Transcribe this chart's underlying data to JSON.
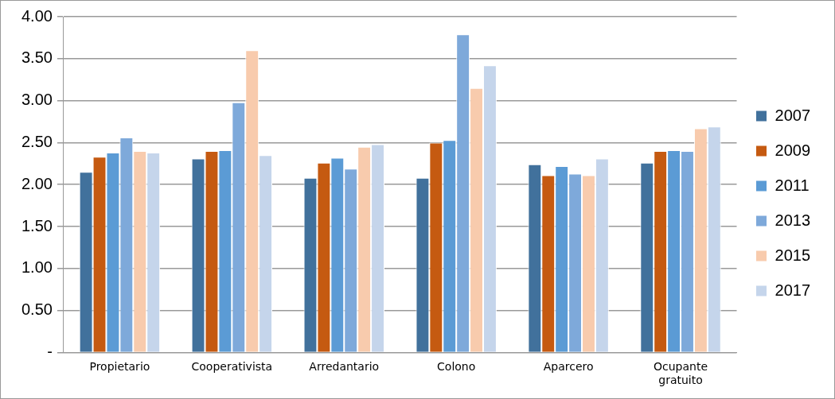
{
  "chart_data": {
    "type": "bar",
    "categories": [
      "Propietario",
      "Cooperativista",
      "Arredantario",
      "Colono",
      "Aparcero",
      "Ocupante gratuito"
    ],
    "series": [
      {
        "name": "2007",
        "color": "#41719c",
        "values": [
          2.15,
          2.31,
          2.08,
          2.08,
          2.24,
          2.26
        ]
      },
      {
        "name": "2009",
        "color": "#c55a11",
        "values": [
          2.33,
          2.4,
          2.26,
          2.5,
          2.11,
          2.4
        ]
      },
      {
        "name": "2011",
        "color": "#5b9bd5",
        "values": [
          2.38,
          2.41,
          2.32,
          2.53,
          2.22,
          2.41
        ]
      },
      {
        "name": "2013",
        "color": "#7ea9da",
        "values": [
          2.56,
          2.98,
          2.19,
          3.79,
          2.13,
          2.4
        ]
      },
      {
        "name": "2015",
        "color": "#f8cbad",
        "values": [
          2.4,
          3.6,
          2.45,
          3.15,
          2.11,
          2.67
        ]
      },
      {
        "name": "2017",
        "color": "#c5d5eb",
        "values": [
          2.38,
          2.35,
          2.48,
          3.42,
          2.31,
          2.69
        ]
      }
    ],
    "ylim": [
      0,
      4
    ],
    "yticks": [
      {
        "value": 0,
        "label": "-"
      },
      {
        "value": 0.5,
        "label": "0.50"
      },
      {
        "value": 1,
        "label": "1.00"
      },
      {
        "value": 1.5,
        "label": "1.50"
      },
      {
        "value": 2,
        "label": "2.00"
      },
      {
        "value": 2.5,
        "label": "2.50"
      },
      {
        "value": 3,
        "label": "3.00"
      },
      {
        "value": 3.5,
        "label": "3.50"
      },
      {
        "value": 4,
        "label": "4.00"
      }
    ],
    "grid": "y",
    "legend": "right"
  }
}
